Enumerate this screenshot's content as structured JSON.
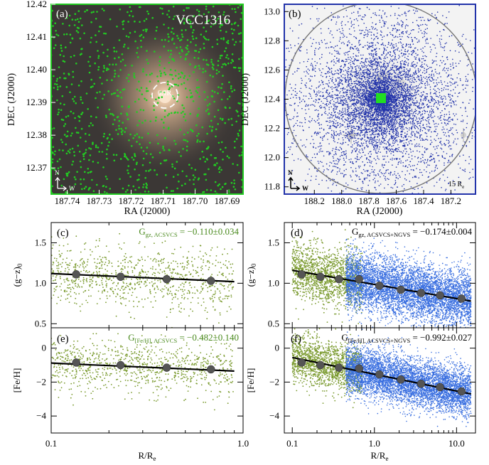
{
  "figure": {
    "panel_a": {
      "label": "(a)",
      "galaxy_name": "VCC1316",
      "aperture_label": "0.1R",
      "aperture_label_sub": "e",
      "compass_n": "N",
      "compass_w": "W",
      "xlabel": "RA (J2000)",
      "ylabel": "DEC (J2000)",
      "xticks": [
        "187.74",
        "187.73",
        "187.72",
        "187.71",
        "187.70",
        "187.69"
      ],
      "yticks": [
        "12.42",
        "12.41",
        "12.40",
        "12.39",
        "12.38",
        "12.37"
      ],
      "colors": {
        "points": "#22cc22",
        "frame": "#22cc22"
      }
    },
    "panel_b": {
      "label": "(b)",
      "circle_label": "15 R",
      "circle_label_sub": "e",
      "compass_n": "N",
      "compass_w": "W",
      "xlabel": "RA (J2000)",
      "ylabel": "DEC (J2000)",
      "xticks": [
        "188.2",
        "188.0",
        "187.8",
        "187.6",
        "187.4",
        "187.2"
      ],
      "yticks": [
        "13.0",
        "12.8",
        "12.6",
        "12.4",
        "12.2",
        "12.0",
        "11.8"
      ],
      "colors": {
        "points": "#2233aa",
        "frame": "#2233aa",
        "footprint": "#22dd22"
      }
    },
    "panel_c": {
      "label": "(c)",
      "gradient_main": "G",
      "gradient_sub": "gz, ACSVCS",
      "gradient_value": " = −0.110±0.034",
      "ylabel_main": "(g−z)",
      "ylabel_sub": "0",
      "yticks": [
        "0.5",
        "1.0",
        "1.5"
      ],
      "color": "#4a8a1e"
    },
    "panel_d": {
      "label": "(d)",
      "gradient_main": "G",
      "gradient_sub": "gz, ACSVCS+NGVS",
      "gradient_value": " = −0.174±0.004",
      "ylabel_main": "(g−z)",
      "ylabel_sub": "0",
      "yticks": [
        "0.5",
        "1.0",
        "1.5"
      ],
      "color": "#000000"
    },
    "panel_e": {
      "label": "(e)",
      "gradient_main": "G",
      "gradient_sub": "[Fe/H], ACSVCS",
      "gradient_value": " = −0.482±0.140",
      "ylabel": "[Fe/H]",
      "yticks": [
        "0",
        "−2",
        "−4"
      ],
      "xticks": [
        "0.1",
        "1.0"
      ],
      "xlabel_main": "R/R",
      "xlabel_sub": "e",
      "color": "#4a8a1e"
    },
    "panel_f": {
      "label": "(f)",
      "gradient_main": "G",
      "gradient_sub": "[Fe/H], ACSVCS+NGVS",
      "gradient_value": " = −0.992±0.027",
      "ylabel": "[Fe/H]",
      "yticks": [
        "0",
        "−2",
        "−4"
      ],
      "xticks": [
        "0.1",
        "1.0",
        "10.0"
      ],
      "xlabel_main": "R/R",
      "xlabel_sub": "e",
      "color": "#000000"
    }
  },
  "chart_data": [
    {
      "type": "scatter",
      "panel": "a",
      "xlabel": "RA (J2000)",
      "ylabel": "DEC (J2000)",
      "xlim": [
        187.745,
        187.685
      ],
      "ylim": [
        12.362,
        12.42
      ],
      "center": [
        187.7105,
        12.391
      ],
      "aperture_radius_deg": 0.0033,
      "n_points": 1000
    },
    {
      "type": "scatter",
      "panel": "b",
      "xlabel": "RA (J2000)",
      "ylabel": "DEC (J2000)",
      "xlim": [
        188.42,
        187.02
      ],
      "ylim": [
        11.75,
        13.05
      ],
      "center": [
        187.71,
        12.39
      ],
      "circle_radius_deg": 0.62,
      "n_points": 7000
    },
    {
      "type": "scatter",
      "panel": "c",
      "ylabel": "(g−z)0",
      "xlim": [
        0.1,
        1.0
      ],
      "ylim": [
        0.45,
        1.75
      ],
      "xscale": "log",
      "binned": {
        "x": [
          0.135,
          0.23,
          0.4,
          0.68
        ],
        "y": [
          1.11,
          1.08,
          1.05,
          1.03
        ]
      },
      "fit": {
        "x": [
          0.1,
          0.9
        ],
        "y": [
          1.12,
          1.02
        ]
      }
    },
    {
      "type": "scatter",
      "panel": "d",
      "ylabel": "(g−z)0",
      "xlim": [
        0.08,
        17
      ],
      "ylim": [
        0.45,
        1.75
      ],
      "xscale": "log",
      "binned": {
        "x": [
          0.13,
          0.22,
          0.37,
          0.65,
          1.15,
          2.1,
          3.7,
          6.3,
          11.5
        ],
        "y": [
          1.11,
          1.08,
          1.05,
          1.05,
          0.97,
          0.92,
          0.88,
          0.85,
          0.81
        ]
      },
      "fit": {
        "x": [
          0.1,
          15
        ],
        "y": [
          1.16,
          0.78
        ]
      }
    },
    {
      "type": "scatter",
      "panel": "e",
      "ylabel": "[Fe/H]",
      "xlabel": "R/Re",
      "xlim": [
        0.1,
        1.0
      ],
      "ylim": [
        -5,
        1.2
      ],
      "xscale": "log",
      "binned": {
        "x": [
          0.135,
          0.23,
          0.4,
          0.68
        ],
        "y": [
          -0.85,
          -1.0,
          -1.15,
          -1.25
        ]
      },
      "fit": {
        "x": [
          0.1,
          0.9
        ],
        "y": [
          -0.88,
          -1.35
        ]
      }
    },
    {
      "type": "scatter",
      "panel": "f",
      "ylabel": "[Fe/H]",
      "xlabel": "R/Re",
      "xlim": [
        0.08,
        17
      ],
      "ylim": [
        -5,
        1.2
      ],
      "xscale": "log",
      "binned": {
        "x": [
          0.13,
          0.22,
          0.37,
          0.65,
          1.15,
          2.1,
          3.7,
          6.3,
          11.5
        ],
        "y": [
          -0.85,
          -1.0,
          -1.15,
          -1.2,
          -1.55,
          -1.85,
          -2.1,
          -2.3,
          -2.55
        ]
      },
      "fit": {
        "x": [
          0.1,
          15
        ],
        "y": [
          -0.55,
          -2.7
        ]
      }
    }
  ]
}
